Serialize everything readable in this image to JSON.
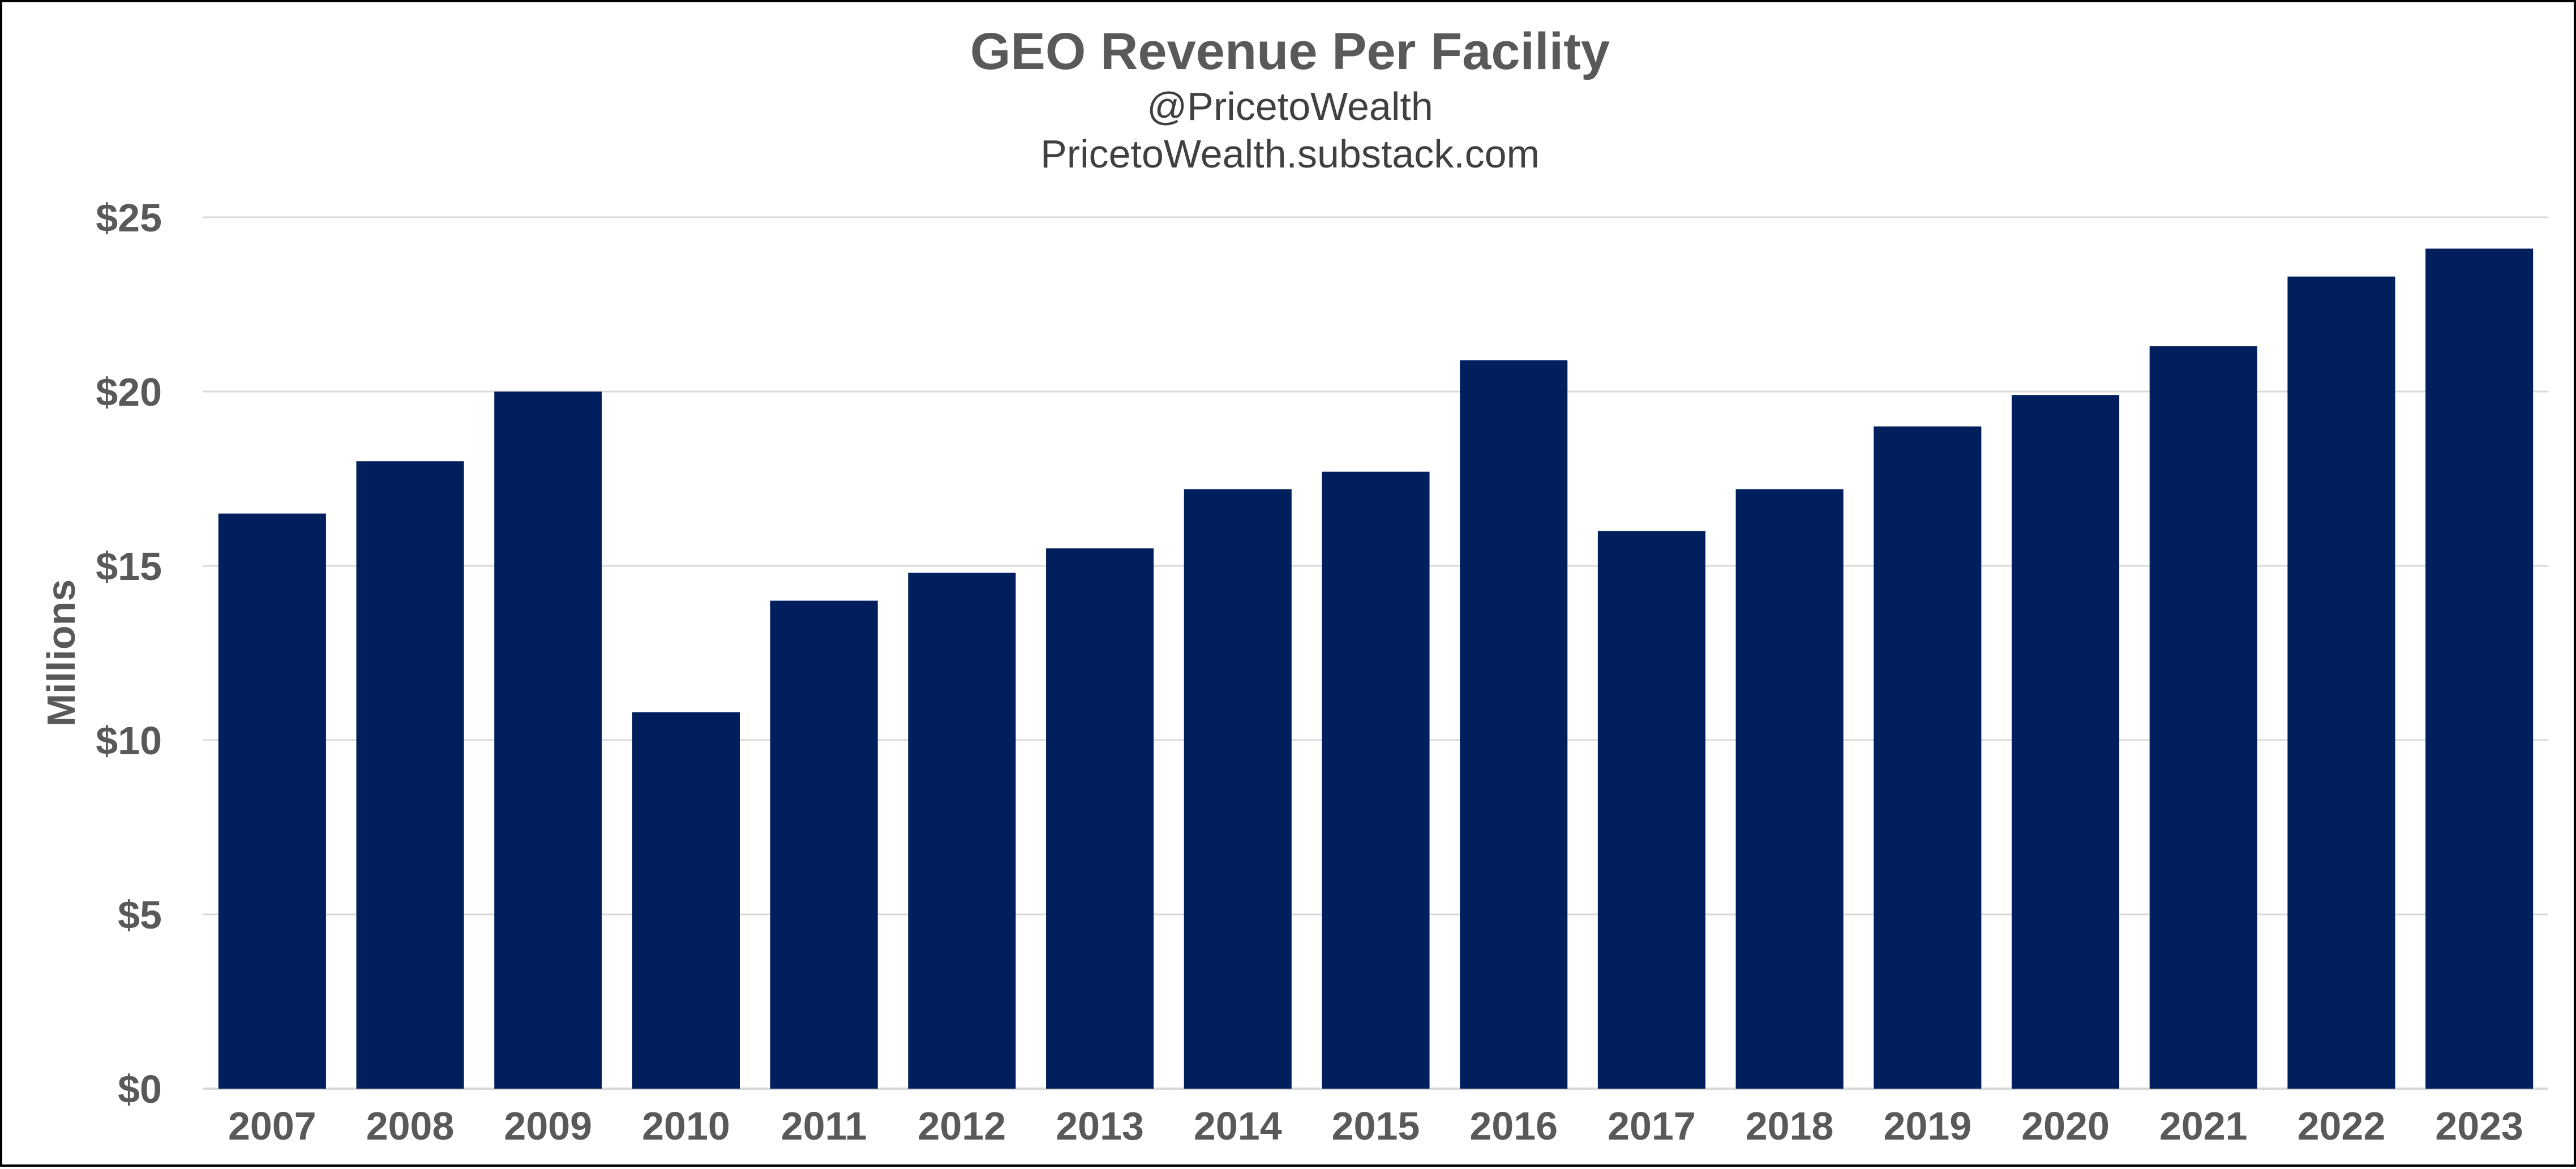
{
  "chart_data": {
    "type": "bar",
    "title": "GEO Revenue Per Facility",
    "subtitles": [
      "@PricetoWealth",
      "PricetoWealth.substack.com"
    ],
    "ylabel": "Millions",
    "xlabel": "",
    "categories": [
      "2007",
      "2008",
      "2009",
      "2010",
      "2011",
      "2012",
      "2013",
      "2014",
      "2015",
      "2016",
      "2017",
      "2018",
      "2019",
      "2020",
      "2021",
      "2022",
      "2023"
    ],
    "values": [
      16.5,
      18.0,
      20.0,
      10.8,
      14.0,
      14.8,
      15.5,
      17.2,
      17.7,
      20.9,
      16.0,
      17.2,
      19.0,
      19.9,
      21.3,
      23.3,
      24.1
    ],
    "ylim": [
      0,
      25
    ],
    "yticks": [
      0,
      5,
      10,
      15,
      20,
      25
    ],
    "ytick_labels": [
      "$0",
      "$5",
      "$10",
      "$15",
      "$20",
      "$25"
    ],
    "grid": true,
    "legend": "none",
    "bar_color": "#001F5C"
  }
}
